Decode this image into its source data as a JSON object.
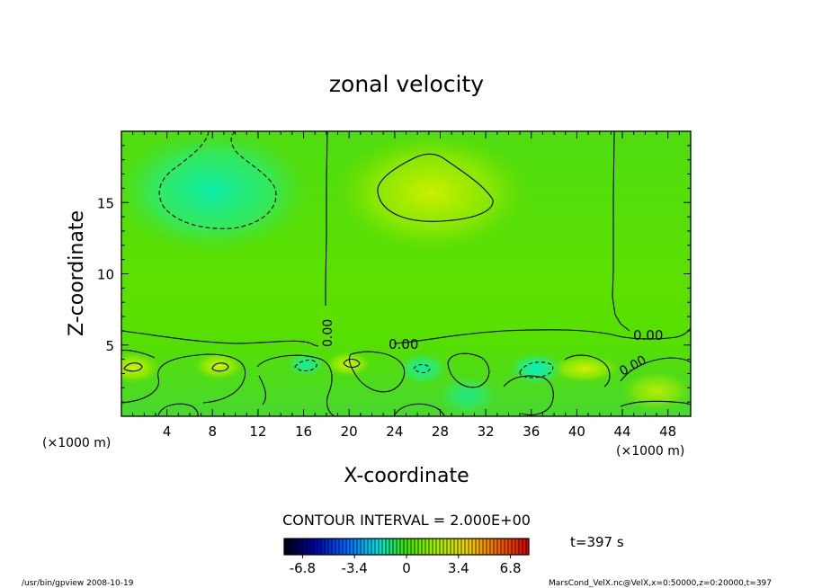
{
  "chart_data": {
    "type": "contour",
    "title": "zonal velocity",
    "xlabel": "X-coordinate",
    "ylabel": "Z-coordinate",
    "x_unit_label_left": "(×1000 m)",
    "x_unit_label_right": "(×1000 m)",
    "xlim": [
      0,
      50
    ],
    "ylim": [
      0,
      20
    ],
    "x_ticks": [
      "4",
      "8",
      "12",
      "16",
      "20",
      "24",
      "28",
      "32",
      "36",
      "40",
      "44",
      "48"
    ],
    "y_ticks": [
      "5",
      "10",
      "15"
    ],
    "contour_interval_text": "CONTOUR INTERVAL = 2.000E+00",
    "contour_labels": [
      "0.00",
      "0.00",
      "0.00",
      "0.00"
    ],
    "colorbar": {
      "tick_labels": [
        "-6.8",
        "-3.4",
        "0",
        "3.4",
        "6.8"
      ],
      "range": [
        -8,
        8
      ]
    },
    "time_label": "t=397 s",
    "footer_left": "/usr/bin/gpview   2008-10-19",
    "footer_right": "MarsCond_VelX.nc@VelX,x=0:50000,z=0:20000,t=397",
    "colors": {
      "background_field": "#55e000",
      "positive_core": "#c8f000",
      "negative_core": "#00f0c0"
    }
  }
}
